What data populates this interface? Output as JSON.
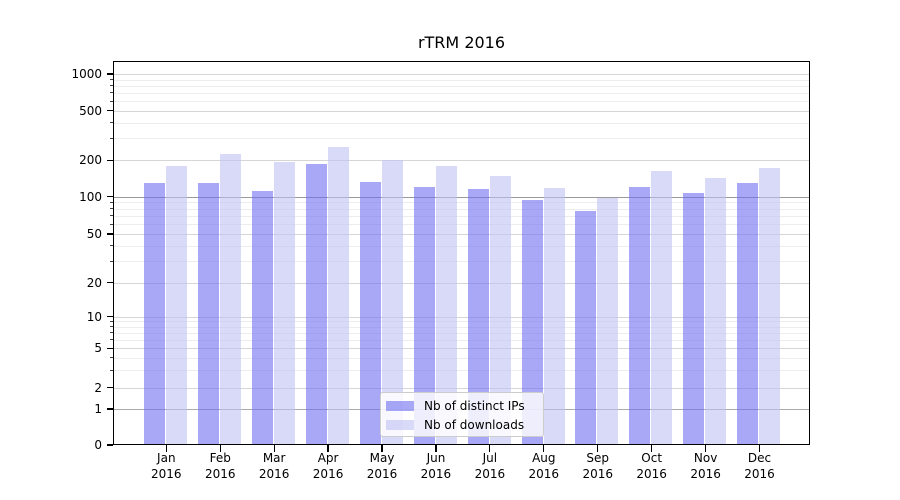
{
  "chart_data": {
    "type": "bar",
    "title": "rTRM 2016",
    "categories": [
      "Jan 2016",
      "Feb 2016",
      "Mar 2016",
      "Apr 2016",
      "May 2016",
      "Jun 2016",
      "Jul 2016",
      "Aug 2016",
      "Sep 2016",
      "Oct 2016",
      "Nov 2016",
      "Dec 2016"
    ],
    "series": [
      {
        "name": "Nb of distinct IPs",
        "color": "#6e6ef0",
        "alpha": 0.6,
        "values": [
          130,
          130,
          111,
          186,
          133,
          121,
          115,
          94,
          76,
          120,
          107,
          131
        ]
      },
      {
        "name": "Nb of downloads",
        "color": "#c0c0f3",
        "alpha": 0.6,
        "values": [
          180,
          224,
          195,
          255,
          200,
          180,
          149,
          117,
          97,
          164,
          143,
          174
        ]
      }
    ],
    "xlabel": "",
    "ylabel": "",
    "y_axis": {
      "scale": "symlog",
      "ticks": [
        0,
        1,
        2,
        5,
        10,
        20,
        50,
        100,
        200,
        500,
        1000
      ],
      "minor_gridlines": [
        3,
        4,
        6,
        7,
        8,
        9,
        30,
        40,
        60,
        70,
        80,
        90,
        300,
        400,
        600,
        700,
        800,
        900
      ],
      "range": [
        0,
        1200
      ]
    },
    "grid": true,
    "legend": {
      "position": "lower-center",
      "entries": [
        "Nb of distinct IPs",
        "Nb of downloads"
      ]
    }
  }
}
